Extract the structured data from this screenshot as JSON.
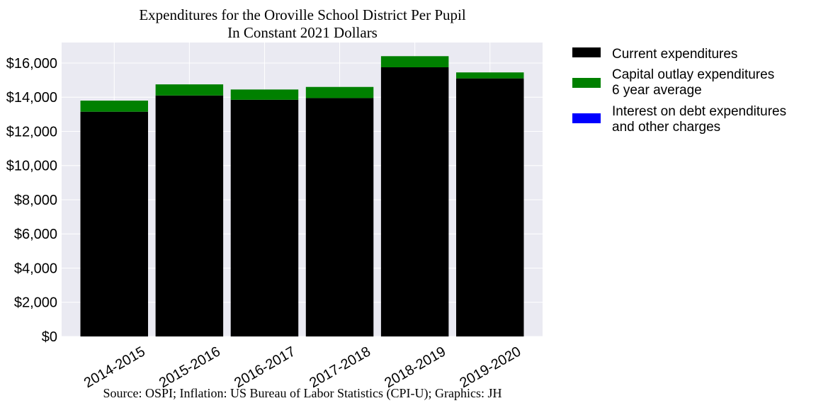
{
  "chart_data": {
    "type": "bar",
    "stacked": true,
    "title_lines": [
      "Expenditures for the Oroville School District Per Pupil",
      "In Constant 2021 Dollars"
    ],
    "source": "Source: OSPI; Inflation: US Bureau of Labor Statistics (CPI-U); Graphics: JH",
    "categories": [
      "2014-2015",
      "2015-2016",
      "2016-2017",
      "2017-2018",
      "2018-2019",
      "2019-2020"
    ],
    "series": [
      {
        "name": "Current expenditures",
        "color": "#000000",
        "values": [
          13150,
          14100,
          13850,
          13950,
          15750,
          15100
        ]
      },
      {
        "name": "Capital outlay expenditures\n6 year average",
        "color": "#008000",
        "values": [
          650,
          650,
          600,
          650,
          650,
          350
        ]
      },
      {
        "name": "Interest on debt expenditures\nand other charges",
        "color": "#0000ff",
        "values": [
          0,
          0,
          0,
          0,
          0,
          0
        ]
      }
    ],
    "yticks": [
      0,
      2000,
      4000,
      6000,
      8000,
      10000,
      12000,
      14000,
      16000
    ],
    "ytick_labels": [
      "$0",
      "$2,000",
      "$4,000",
      "$6,000",
      "$8,000",
      "$10,000",
      "$12,000",
      "$14,000",
      "$16,000"
    ],
    "ylim": [
      0,
      17200
    ],
    "grid": true,
    "legend_position": "outside-right"
  }
}
